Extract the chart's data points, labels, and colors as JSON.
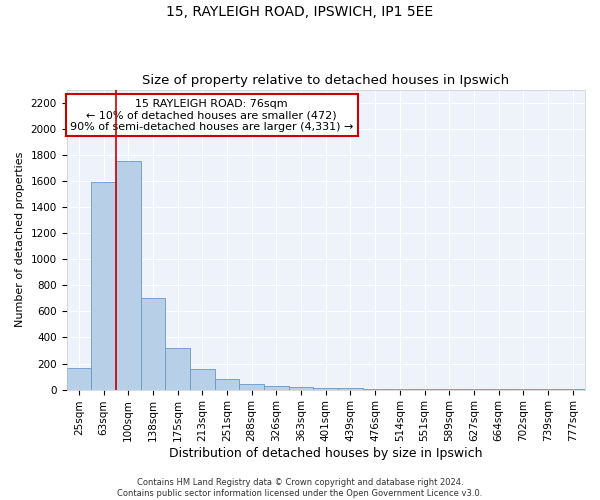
{
  "title1": "15, RAYLEIGH ROAD, IPSWICH, IP1 5EE",
  "title2": "Size of property relative to detached houses in Ipswich",
  "xlabel": "Distribution of detached houses by size in Ipswich",
  "ylabel": "Number of detached properties",
  "categories": [
    "25sqm",
    "63sqm",
    "100sqm",
    "138sqm",
    "175sqm",
    "213sqm",
    "251sqm",
    "288sqm",
    "326sqm",
    "363sqm",
    "401sqm",
    "439sqm",
    "476sqm",
    "514sqm",
    "551sqm",
    "589sqm",
    "627sqm",
    "664sqm",
    "702sqm",
    "739sqm",
    "777sqm"
  ],
  "values": [
    165,
    1590,
    1755,
    700,
    320,
    160,
    80,
    42,
    25,
    18,
    14,
    10,
    8,
    5,
    3,
    2,
    2,
    1,
    1,
    1,
    1
  ],
  "bar_color": "#b8cfe8",
  "bar_edge_color": "#6898c8",
  "vline_color": "#cc0000",
  "annotation_text": "15 RAYLEIGH ROAD: 76sqm\n← 10% of detached houses are smaller (472)\n90% of semi-detached houses are larger (4,331) →",
  "annotation_box_color": "#ffffff",
  "annotation_box_edge": "#cc0000",
  "ylim": [
    0,
    2300
  ],
  "yticks": [
    0,
    200,
    400,
    600,
    800,
    1000,
    1200,
    1400,
    1600,
    1800,
    2000,
    2200
  ],
  "background_color": "#eef2fb",
  "footnote": "Contains HM Land Registry data © Crown copyright and database right 2024.\nContains public sector information licensed under the Open Government Licence v3.0.",
  "title1_fontsize": 10,
  "title2_fontsize": 9.5,
  "xlabel_fontsize": 9,
  "ylabel_fontsize": 8,
  "tick_fontsize": 7.5,
  "annot_fontsize": 8,
  "footnote_fontsize": 6
}
